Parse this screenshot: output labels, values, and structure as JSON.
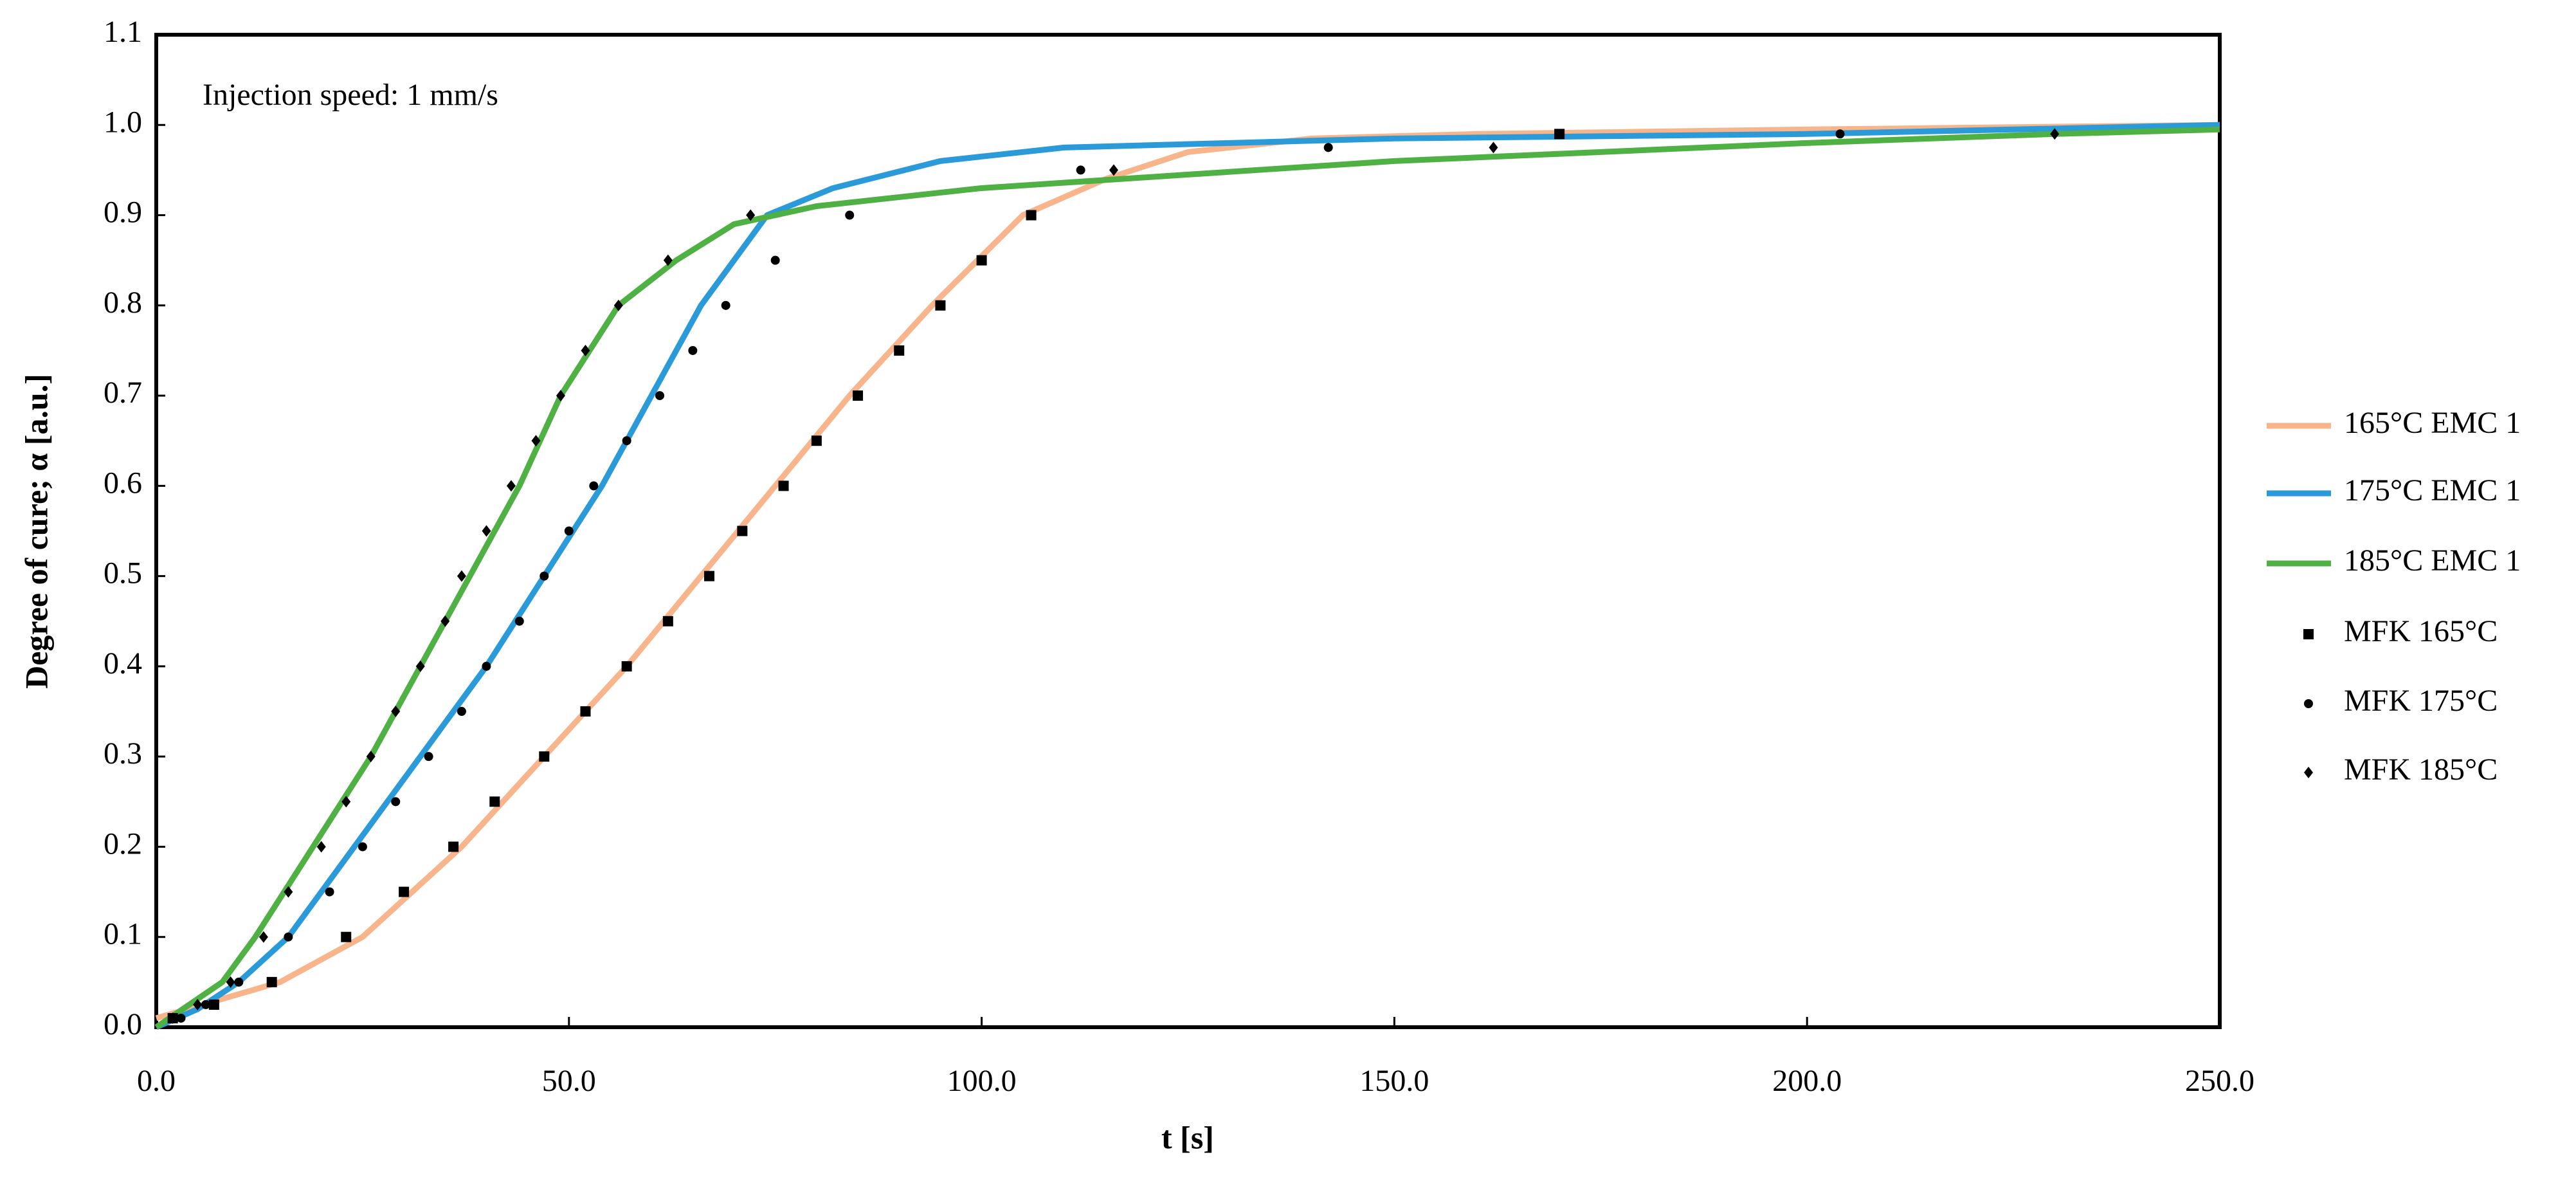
{
  "chart_data": {
    "type": "line",
    "annotation": "Injection speed: 1 mm/s",
    "x_label": "t [s]",
    "y_label": "Degree of cure; α [a.u.]",
    "xlim": [
      0,
      250
    ],
    "xticks": [
      {
        "value": 0,
        "label": "0.0"
      },
      {
        "value": 50,
        "label": "50.0"
      },
      {
        "value": 100,
        "label": "100.0"
      },
      {
        "value": 150,
        "label": "150.0"
      },
      {
        "value": 200,
        "label": "200.0"
      },
      {
        "value": 250,
        "label": "250.0"
      }
    ],
    "ylim": [
      0,
      1.1
    ],
    "yticks": [
      {
        "value": 0,
        "label": "0.0"
      },
      0.1,
      0.2,
      0.3,
      0.4,
      0.5,
      0.6,
      0.7,
      0.8,
      0.9,
      {
        "value": 1,
        "label": "1.0"
      },
      1.1
    ],
    "legend": "right",
    "series": [
      {
        "name": "165°C EMC 1",
        "style": "line",
        "color": "#f8b48a",
        "x": [
          0,
          15,
          25,
          37,
          47,
          57,
          66,
          75,
          84,
          94,
          105,
          115,
          125,
          140,
          160,
          200,
          250
        ],
        "values": [
          0.01,
          0.05,
          0.1,
          0.2,
          0.3,
          0.4,
          0.5,
          0.6,
          0.7,
          0.8,
          0.9,
          0.94,
          0.97,
          0.985,
          0.99,
          0.995,
          1.0
        ]
      },
      {
        "name": "175°C EMC 1",
        "style": "line",
        "color": "#2a9ad8",
        "x": [
          0,
          5,
          10,
          16,
          24,
          32,
          40,
          47,
          54,
          60,
          66,
          74,
          82,
          95,
          110,
          130,
          150,
          200,
          250
        ],
        "values": [
          0,
          0.02,
          0.05,
          0.1,
          0.2,
          0.3,
          0.4,
          0.5,
          0.6,
          0.7,
          0.8,
          0.9,
          0.93,
          0.96,
          0.975,
          0.98,
          0.985,
          0.99,
          1.0
        ]
      },
      {
        "name": "185°C EMC 1",
        "style": "line",
        "color": "#4fb043",
        "x": [
          0,
          8,
          12,
          19,
          26,
          32,
          38,
          44,
          49,
          56,
          63,
          70,
          80,
          100,
          125,
          150,
          175,
          200,
          230,
          250
        ],
        "values": [
          0,
          0.05,
          0.1,
          0.2,
          0.3,
          0.4,
          0.5,
          0.6,
          0.7,
          0.8,
          0.85,
          0.89,
          0.91,
          0.93,
          0.945,
          0.96,
          0.97,
          0.98,
          0.99,
          0.995
        ]
      },
      {
        "name": "MFK 165°C",
        "style": "square",
        "color": "#000000",
        "x": [
          2,
          7,
          14,
          23,
          30,
          36,
          41,
          47,
          52,
          57,
          62,
          67,
          71,
          76,
          80,
          85,
          90,
          95,
          100,
          106,
          170
        ],
        "values": [
          0.01,
          0.025,
          0.05,
          0.1,
          0.15,
          0.2,
          0.25,
          0.3,
          0.35,
          0.4,
          0.45,
          0.5,
          0.55,
          0.6,
          0.65,
          0.7,
          0.75,
          0.8,
          0.85,
          0.9,
          0.99
        ]
      },
      {
        "name": "MFK 175°C",
        "style": "circle",
        "color": "#000000",
        "x": [
          3,
          6,
          10,
          16,
          21,
          25,
          29,
          33,
          37,
          40,
          44,
          47,
          50,
          53,
          57,
          61,
          65,
          69,
          75,
          84,
          112,
          142,
          204
        ],
        "values": [
          0.01,
          0.025,
          0.05,
          0.1,
          0.15,
          0.2,
          0.25,
          0.3,
          0.35,
          0.4,
          0.45,
          0.5,
          0.55,
          0.6,
          0.65,
          0.7,
          0.75,
          0.8,
          0.85,
          0.9,
          0.95,
          0.975,
          0.99
        ]
      },
      {
        "name": "MFK 185°C",
        "style": "diamond",
        "color": "#000000",
        "x": [
          2,
          5,
          9,
          13,
          16,
          20,
          23,
          26,
          29,
          32,
          35,
          37,
          40,
          43,
          46,
          49,
          52,
          56,
          62,
          72,
          116,
          162,
          230
        ],
        "values": [
          0.01,
          0.025,
          0.05,
          0.1,
          0.15,
          0.2,
          0.25,
          0.3,
          0.35,
          0.4,
          0.45,
          0.5,
          0.55,
          0.6,
          0.65,
          0.7,
          0.75,
          0.8,
          0.85,
          0.9,
          0.95,
          0.975,
          0.99
        ]
      }
    ]
  }
}
